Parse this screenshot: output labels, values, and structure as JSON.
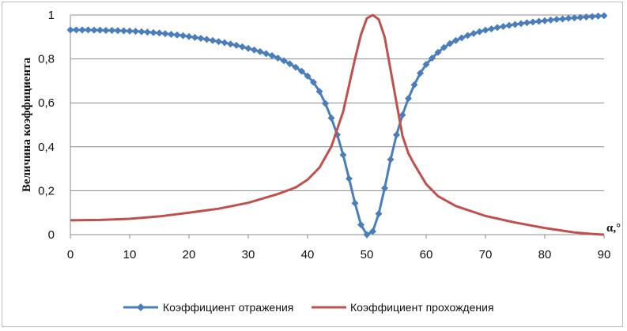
{
  "chart_data": {
    "type": "line",
    "title": "",
    "xlabel": "α,°",
    "ylabel": "Величина коэффициента",
    "xlim": [
      0,
      90
    ],
    "ylim": [
      0,
      1
    ],
    "x_ticks": [
      "0",
      "10",
      "20",
      "30",
      "40",
      "50",
      "60",
      "70",
      "80",
      "90"
    ],
    "y_ticks": [
      "0",
      "0,2",
      "0,4",
      "0,6",
      "0,8",
      "1"
    ],
    "grid": "horizontal",
    "legend_position": "bottom",
    "series": [
      {
        "name": "Коэффициент отражения",
        "color": "#4a7ebb",
        "marker": "diamond",
        "points": [
          [
            0,
            0.932
          ],
          [
            1,
            0.932
          ],
          [
            2,
            0.932
          ],
          [
            3,
            0.932
          ],
          [
            4,
            0.931
          ],
          [
            5,
            0.931
          ],
          [
            6,
            0.93
          ],
          [
            7,
            0.93
          ],
          [
            8,
            0.929
          ],
          [
            9,
            0.928
          ],
          [
            10,
            0.927
          ],
          [
            11,
            0.926
          ],
          [
            12,
            0.924
          ],
          [
            13,
            0.922
          ],
          [
            14,
            0.92
          ],
          [
            15,
            0.918
          ],
          [
            16,
            0.915
          ],
          [
            17,
            0.912
          ],
          [
            18,
            0.909
          ],
          [
            19,
            0.906
          ],
          [
            20,
            0.902
          ],
          [
            21,
            0.898
          ],
          [
            22,
            0.894
          ],
          [
            23,
            0.889
          ],
          [
            24,
            0.884
          ],
          [
            25,
            0.879
          ],
          [
            26,
            0.874
          ],
          [
            27,
            0.868
          ],
          [
            28,
            0.862
          ],
          [
            29,
            0.855
          ],
          [
            30,
            0.848
          ],
          [
            31,
            0.841
          ],
          [
            32,
            0.833
          ],
          [
            33,
            0.824
          ],
          [
            34,
            0.815
          ],
          [
            35,
            0.804
          ],
          [
            36,
            0.792
          ],
          [
            37,
            0.778
          ],
          [
            38,
            0.762
          ],
          [
            39,
            0.744
          ],
          [
            40,
            0.722
          ],
          [
            41,
            0.694
          ],
          [
            42,
            0.652
          ],
          [
            43,
            0.597
          ],
          [
            44,
            0.531
          ],
          [
            45,
            0.455
          ],
          [
            46,
            0.363
          ],
          [
            47,
            0.255
          ],
          [
            48,
            0.143
          ],
          [
            49,
            0.045
          ],
          [
            50,
            0.0
          ],
          [
            51,
            0.015
          ],
          [
            52,
            0.095
          ],
          [
            53,
            0.212
          ],
          [
            54,
            0.342
          ],
          [
            55,
            0.454
          ],
          [
            56,
            0.545
          ],
          [
            57,
            0.62
          ],
          [
            58,
            0.682
          ],
          [
            59,
            0.735
          ],
          [
            60,
            0.775
          ],
          [
            61,
            0.804
          ],
          [
            62,
            0.83
          ],
          [
            63,
            0.852
          ],
          [
            64,
            0.87
          ],
          [
            65,
            0.884
          ],
          [
            66,
            0.896
          ],
          [
            67,
            0.907
          ],
          [
            68,
            0.916
          ],
          [
            69,
            0.924
          ],
          [
            70,
            0.931
          ],
          [
            71,
            0.937
          ],
          [
            72,
            0.943
          ],
          [
            73,
            0.948
          ],
          [
            74,
            0.953
          ],
          [
            75,
            0.957
          ],
          [
            76,
            0.961
          ],
          [
            77,
            0.965
          ],
          [
            78,
            0.968
          ],
          [
            79,
            0.971
          ],
          [
            80,
            0.974
          ],
          [
            81,
            0.977
          ],
          [
            82,
            0.98
          ],
          [
            83,
            0.982
          ],
          [
            84,
            0.985
          ],
          [
            85,
            0.987
          ],
          [
            86,
            0.989
          ],
          [
            87,
            0.991
          ],
          [
            88,
            0.993
          ],
          [
            89,
            0.995
          ],
          [
            90,
            0.997
          ]
        ]
      },
      {
        "name": "Коэффициент прохождения",
        "color": "#c0504d",
        "marker": "none",
        "points": [
          [
            0,
            0.065
          ],
          [
            5,
            0.067
          ],
          [
            10,
            0.072
          ],
          [
            15,
            0.083
          ],
          [
            20,
            0.1
          ],
          [
            25,
            0.118
          ],
          [
            30,
            0.145
          ],
          [
            35,
            0.185
          ],
          [
            38,
            0.215
          ],
          [
            40,
            0.25
          ],
          [
            42,
            0.305
          ],
          [
            44,
            0.4
          ],
          [
            46,
            0.56
          ],
          [
            48,
            0.8
          ],
          [
            49,
            0.91
          ],
          [
            50,
            0.985
          ],
          [
            51,
            1.0
          ],
          [
            52,
            0.98
          ],
          [
            53,
            0.9
          ],
          [
            54,
            0.75
          ],
          [
            55,
            0.6
          ],
          [
            56,
            0.45
          ],
          [
            57,
            0.37
          ],
          [
            58,
            0.32
          ],
          [
            60,
            0.23
          ],
          [
            62,
            0.175
          ],
          [
            65,
            0.13
          ],
          [
            70,
            0.085
          ],
          [
            75,
            0.055
          ],
          [
            80,
            0.03
          ],
          [
            85,
            0.01
          ],
          [
            88,
            0.003
          ],
          [
            90,
            0.0
          ]
        ]
      }
    ]
  }
}
